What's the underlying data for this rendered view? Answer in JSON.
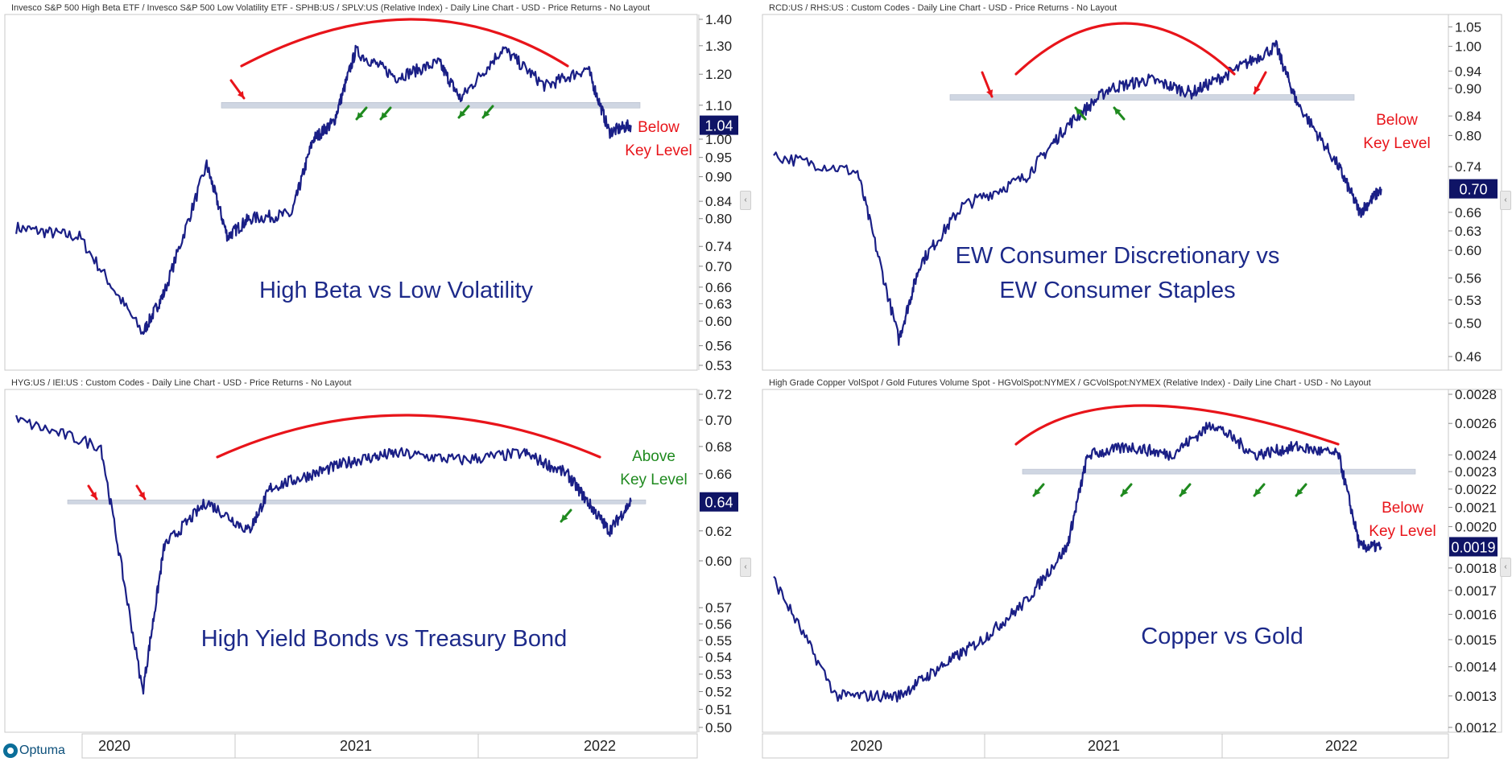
{
  "colors": {
    "series": "#1a1f86",
    "red": "#e8141a",
    "green": "#1f8a1f",
    "zone": "#c7cfdd",
    "axis_box": "#0f1466"
  },
  "brand": {
    "name": "Optuma"
  },
  "panels": [
    {
      "id": "high-beta",
      "header": "Invesco S&P 500 High Beta ETF / Invesco S&P 500 Low Volatility ETF - SPHB:US / SPLV:US (Relative Index) - Daily Line Chart - USD - Price Returns - No Layout",
      "title_lines": [
        "High Beta vs Low Volatility"
      ],
      "note_lines": [
        "Below",
        "Key Level"
      ],
      "note_color": "red",
      "last_value": "1.04",
      "ticks": [
        "1.40",
        "1.30",
        "1.20",
        "1.10",
        "1.00",
        "0.95",
        "0.90",
        "0.84",
        "0.80",
        "0.74",
        "0.70",
        "0.66",
        "0.63",
        "0.60",
        "0.56",
        "0.53"
      ]
    },
    {
      "id": "discretionary-staples",
      "header": "RCD:US / RHS:US : Custom Codes - Daily Line Chart - USD - Price Returns - No Layout",
      "title_lines": [
        "EW Consumer Discretionary vs",
        "EW Consumer Staples"
      ],
      "note_lines": [
        "Below",
        "Key Level"
      ],
      "note_color": "red",
      "last_value": "0.70",
      "ticks": [
        "1.05",
        "1.00",
        "0.94",
        "0.90",
        "0.84",
        "0.80",
        "0.74",
        "0.66",
        "0.63",
        "0.60",
        "0.56",
        "0.53",
        "0.50",
        "0.46"
      ]
    },
    {
      "id": "hy-treasury",
      "header": "HYG:US / IEI:US : Custom Codes - Daily Line Chart - USD - Price Returns - No Layout",
      "title_lines": [
        "High Yield Bonds vs Treasury Bond"
      ],
      "note_lines": [
        "Above",
        "Key Level"
      ],
      "note_color": "green",
      "last_value": "0.64",
      "ticks": [
        "0.72",
        "0.70",
        "0.68",
        "0.66",
        "0.62",
        "0.60",
        "0.57",
        "0.56",
        "0.55",
        "0.54",
        "0.53",
        "0.52",
        "0.51",
        "0.50"
      ]
    },
    {
      "id": "copper-gold",
      "header": "High Grade Copper VolSpot / Gold Futures Volume Spot  - HGVolSpot:NYMEX / GCVolSpot:NYMEX (Relative Index) - Daily Line Chart - USD - No Layout",
      "title_lines": [
        "Copper vs Gold"
      ],
      "note_lines": [
        "Below",
        "Key Level"
      ],
      "note_color": "red",
      "last_value": "0.0019",
      "ticks": [
        "0.0028",
        "0.0026",
        "0.0024",
        "0.0023",
        "0.0022",
        "0.0021",
        "0.0020",
        "0.0018",
        "0.0017",
        "0.0016",
        "0.0015",
        "0.0014",
        "0.0013",
        "0.0012"
      ]
    }
  ],
  "time_axis": [
    "2020",
    "2021",
    "2022"
  ],
  "chart_data": [
    {
      "type": "line",
      "title": "High Beta vs Low Volatility",
      "scale": "log",
      "ylim": [
        0.53,
        1.4
      ],
      "x": [
        "2019-09",
        "2019-12",
        "2020-03",
        "2020-04",
        "2020-06",
        "2020-07",
        "2020-08",
        "2020-10",
        "2020-11",
        "2020-12",
        "2021-01",
        "2021-03",
        "2021-05",
        "2021-06",
        "2021-08",
        "2021-10",
        "2021-12",
        "2022-01",
        "2022-02"
      ],
      "values": [
        0.78,
        0.76,
        0.58,
        0.65,
        0.93,
        0.76,
        0.8,
        0.81,
        1.0,
        1.05,
        1.28,
        1.19,
        1.24,
        1.12,
        1.29,
        1.16,
        1.22,
        1.02,
        1.04
      ],
      "key_level": 1.1
    },
    {
      "type": "line",
      "title": "EW Consumer Discretionary vs EW Consumer Staples",
      "scale": "log",
      "ylim": [
        0.45,
        1.07
      ],
      "x": [
        "2019-09",
        "2020-01",
        "2020-03",
        "2020-04",
        "2020-06",
        "2020-09",
        "2020-11",
        "2021-01",
        "2021-03",
        "2021-05",
        "2021-07",
        "2021-09",
        "2021-10",
        "2021-12",
        "2022-01",
        "2022-02"
      ],
      "values": [
        0.76,
        0.73,
        0.48,
        0.58,
        0.67,
        0.72,
        0.82,
        0.9,
        0.92,
        0.89,
        0.94,
        1.0,
        0.87,
        0.74,
        0.66,
        0.7
      ],
      "key_level": 0.88
    },
    {
      "type": "line",
      "title": "High Yield Bonds vs Treasury Bond",
      "scale": "log",
      "ylim": [
        0.5,
        0.72
      ],
      "x": [
        "2019-09",
        "2020-01",
        "2020-03",
        "2020-04",
        "2020-06",
        "2020-08",
        "2020-09",
        "2020-11",
        "2021-01",
        "2021-03",
        "2021-06",
        "2021-09",
        "2021-11",
        "2021-12",
        "2022-01",
        "2022-02"
      ],
      "values": [
        0.7,
        0.68,
        0.52,
        0.61,
        0.64,
        0.62,
        0.65,
        0.66,
        0.67,
        0.675,
        0.67,
        0.675,
        0.66,
        0.64,
        0.62,
        0.64
      ],
      "key_level": 0.64
    },
    {
      "type": "line",
      "title": "Copper vs Gold",
      "scale": "log",
      "ylim": [
        0.0012,
        0.0028
      ],
      "x": [
        "2019-09",
        "2019-12",
        "2020-03",
        "2020-05",
        "2020-07",
        "2020-09",
        "2020-11",
        "2020-12",
        "2021-02",
        "2021-04",
        "2021-06",
        "2021-08",
        "2021-10",
        "2021-12",
        "2022-01",
        "2022-02"
      ],
      "values": [
        0.00175,
        0.0013,
        0.0013,
        0.0014,
        0.0015,
        0.00165,
        0.0019,
        0.0024,
        0.00245,
        0.0024,
        0.0026,
        0.0024,
        0.00245,
        0.0024,
        0.0019,
        0.0019
      ],
      "key_level": 0.0023
    }
  ]
}
